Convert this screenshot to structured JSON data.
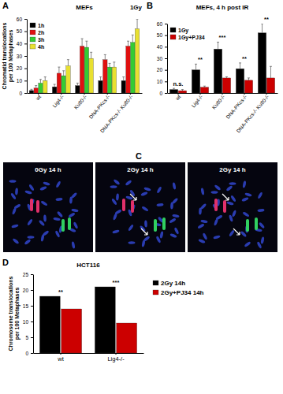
{
  "chart_data": [
    {
      "type": "bar",
      "label": "A",
      "title": "MEFs",
      "subtitle": "1Gy",
      "y_label": [
        "Chromatid translocations",
        "per 100 Metaphases"
      ],
      "categories": [
        "wt",
        "Lig4-/-",
        "Ku80-/-",
        "DNA-PKcs-/-",
        "DNA-PKcs-/- Ku80-/-"
      ],
      "series": [
        {
          "name": "1h",
          "color": "#000000",
          "values": [
            2,
            5,
            6,
            10,
            10
          ],
          "errors": [
            1,
            2,
            2,
            3,
            3
          ]
        },
        {
          "name": "2h",
          "color": "#e01010",
          "values": [
            4,
            16,
            38,
            27,
            38
          ],
          "errors": [
            2,
            5,
            6,
            4,
            4
          ]
        },
        {
          "name": "3h",
          "color": "#33cc33",
          "values": [
            8,
            14,
            37,
            21,
            41
          ],
          "errors": [
            3,
            4,
            5,
            3,
            6
          ]
        },
        {
          "name": "4h",
          "color": "#e8e030",
          "values": [
            10,
            22,
            28,
            21,
            52
          ],
          "errors": [
            3,
            5,
            5,
            4,
            8
          ]
        }
      ],
      "ylim": [
        0,
        60
      ],
      "yticks": [
        0,
        10,
        20,
        30,
        40,
        50,
        60
      ],
      "legend": "top-left",
      "grid": false
    },
    {
      "type": "bar",
      "label": "B",
      "title": "MEFs, 4 h post IR",
      "categories": [
        "wt",
        "Lig4-/-",
        "Ku80-/-",
        "DNA-PKcs-/-",
        "DNA-PKcs-/- Ku80-/-"
      ],
      "series": [
        {
          "name": "1Gy",
          "color": "#000000",
          "values": [
            3,
            20,
            38,
            21,
            52
          ],
          "errors": [
            1,
            5,
            6,
            5,
            8
          ]
        },
        {
          "name": "1Gy+PJ34",
          "color": "#cc0000",
          "values": [
            2,
            5,
            13,
            11,
            13
          ],
          "errors": [
            1,
            1,
            1,
            2,
            10
          ]
        }
      ],
      "annotations": [
        "n.s.",
        "**",
        "***",
        "**",
        "**"
      ],
      "ylim": [
        0,
        60
      ],
      "yticks": [
        0,
        10,
        20,
        30,
        40,
        50,
        60
      ],
      "legend": "top-left",
      "grid": false
    },
    {
      "type": "bar",
      "label": "D",
      "title": "HCT116",
      "y_label": [
        "Chromosome translocations",
        "per 100 Metaphases"
      ],
      "categories": [
        "wt",
        "Lig4-/-"
      ],
      "series": [
        {
          "name": "2Gy 14h",
          "color": "#000000",
          "values": [
            18,
            21
          ]
        },
        {
          "name": "2Gy+PJ34 14h",
          "color": "#cc0000",
          "values": [
            14,
            9.5
          ]
        }
      ],
      "annotations": [
        "**",
        "***"
      ],
      "ylim": [
        0,
        25
      ],
      "yticks": [
        0,
        5,
        10,
        15,
        20,
        25
      ],
      "legend": "right",
      "grid": false
    }
  ],
  "panel_c": {
    "label": "C",
    "captions": [
      "0Gy 14 h",
      "2Gy 14 h",
      "2Gy 14 h"
    ]
  }
}
